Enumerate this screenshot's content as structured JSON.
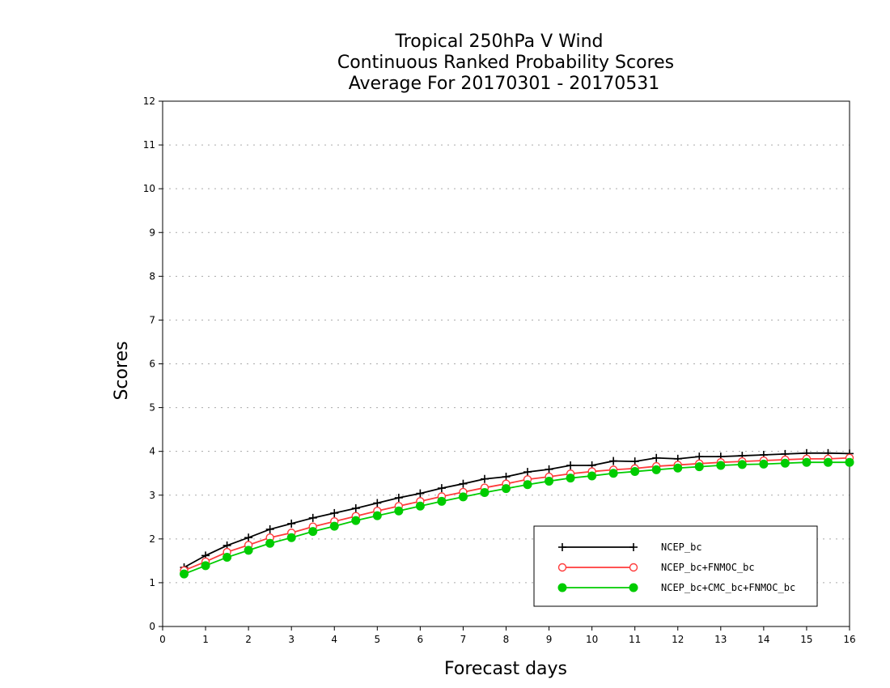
{
  "chart_data": {
    "type": "line",
    "title": [
      "Tropical 250hPa V Wind",
      "Continuous Ranked Probability Scores",
      "Average For 20170301 - 20170531"
    ],
    "xlabel": "Forecast days",
    "ylabel": "Scores",
    "xlim": [
      0,
      16
    ],
    "ylim": [
      0,
      12
    ],
    "xticks": [
      "0",
      "1",
      "2",
      "3",
      "4",
      "5",
      "6",
      "7",
      "8",
      "9",
      "10",
      "11",
      "12",
      "13",
      "14",
      "15",
      "16"
    ],
    "yticks": [
      "0",
      "1",
      "2",
      "3",
      "4",
      "5",
      "6",
      "7",
      "8",
      "9",
      "10",
      "11",
      "12"
    ],
    "grid": true,
    "legend_position": "bottom-right",
    "x": [
      0.5,
      1,
      1.5,
      2,
      2.5,
      3,
      3.5,
      4,
      4.5,
      5,
      5.5,
      6,
      6.5,
      7,
      7.5,
      8,
      8.5,
      9,
      9.5,
      10,
      10.5,
      11,
      11.5,
      12,
      12.5,
      13,
      13.5,
      14,
      14.5,
      15,
      15.5,
      16
    ],
    "series": [
      {
        "name": "NCEP_bc",
        "color": "#000000",
        "marker": "plus",
        "values": [
          1.35,
          1.62,
          1.85,
          2.03,
          2.22,
          2.35,
          2.48,
          2.59,
          2.7,
          2.82,
          2.94,
          3.04,
          3.16,
          3.26,
          3.37,
          3.42,
          3.53,
          3.59,
          3.68,
          3.68,
          3.78,
          3.77,
          3.85,
          3.83,
          3.88,
          3.88,
          3.9,
          3.92,
          3.94,
          3.96,
          3.96,
          3.95
        ]
      },
      {
        "name": "NCEP_bc+FNMOC_bc",
        "color": "#ff3b3b",
        "marker": "open-circle",
        "values": [
          1.28,
          1.48,
          1.7,
          1.86,
          2.03,
          2.14,
          2.28,
          2.4,
          2.52,
          2.64,
          2.75,
          2.86,
          2.97,
          3.07,
          3.17,
          3.26,
          3.36,
          3.42,
          3.49,
          3.54,
          3.58,
          3.61,
          3.66,
          3.69,
          3.72,
          3.75,
          3.77,
          3.79,
          3.81,
          3.83,
          3.83,
          3.85
        ]
      },
      {
        "name": "NCEP_bc+CMC_bc+FNMOC_bc",
        "color": "#00cc00",
        "marker": "filled-circle",
        "values": [
          1.2,
          1.39,
          1.58,
          1.74,
          1.9,
          2.03,
          2.17,
          2.29,
          2.42,
          2.53,
          2.64,
          2.75,
          2.86,
          2.96,
          3.06,
          3.15,
          3.24,
          3.32,
          3.39,
          3.44,
          3.5,
          3.54,
          3.58,
          3.62,
          3.65,
          3.68,
          3.7,
          3.71,
          3.73,
          3.75,
          3.75,
          3.75
        ]
      }
    ]
  }
}
